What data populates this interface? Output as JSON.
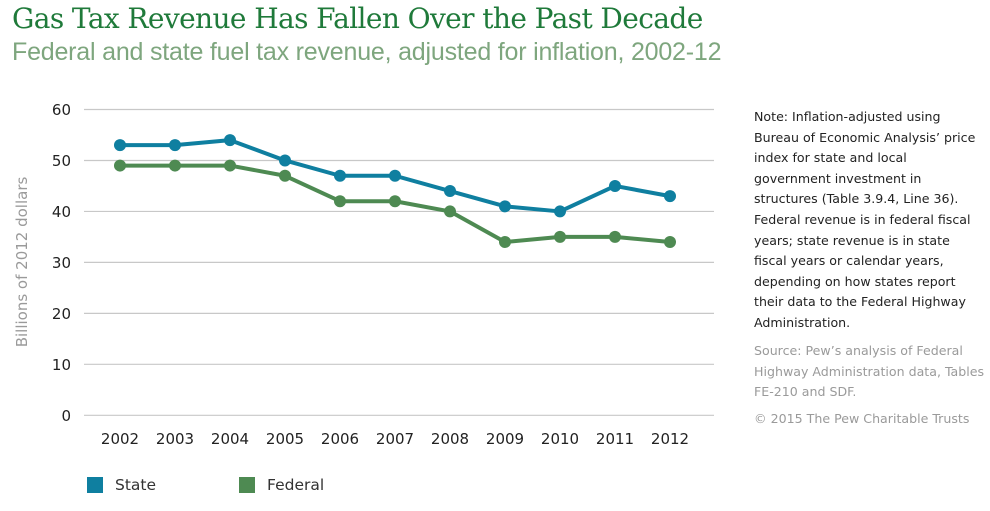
{
  "header": {
    "title": "Gas Tax Revenue Has Fallen Over the Past Decade",
    "subtitle": "Federal and state fuel tax revenue, adjusted for inflation, 2002-12"
  },
  "notes": {
    "note": "Note: Inflation-adjusted using Bureau of Economic Analysis’ price index for state and local government investment in structures (Table 3.9.4, Line 36). Federal revenue is in federal fiscal years; state revenue is in state fiscal years or calendar years, depending on how states report their data to the Federal Highway Administration.",
    "source": "Source: Pew’s analysis of Federal Highway Administration data, Tables FE-210 and SDF.",
    "copyright": "© 2015 The Pew Charitable Trusts"
  },
  "colors": {
    "state": "#0f7fa0",
    "federal": "#4e8a52",
    "grid": "#c8c8c8"
  },
  "chart_data": {
    "type": "line",
    "title": "Gas Tax Revenue Has Fallen Over the Past Decade",
    "subtitle": "Federal and state fuel tax revenue, adjusted for inflation, 2002-12",
    "xlabel": "",
    "ylabel": "Billions of 2012 dollars",
    "x": [
      "2002",
      "2003",
      "2004",
      "2005",
      "2006",
      "2007",
      "2008",
      "2009",
      "2010",
      "2011",
      "2012"
    ],
    "ylim": [
      0,
      60
    ],
    "yticks": [
      0,
      10,
      20,
      30,
      40,
      50,
      60
    ],
    "grid": true,
    "legend_position": "bottom-left",
    "series": [
      {
        "name": "State",
        "color": "#0f7fa0",
        "values": [
          53,
          53,
          54,
          50,
          47,
          47,
          44,
          41,
          40,
          45,
          43
        ]
      },
      {
        "name": "Federal",
        "color": "#4e8a52",
        "values": [
          49,
          49,
          49,
          47,
          42,
          42,
          40,
          34,
          35,
          35,
          34
        ]
      }
    ]
  },
  "legend": [
    {
      "label": "State",
      "color": "#0f7fa0"
    },
    {
      "label": "Federal",
      "color": "#4e8a52"
    }
  ]
}
